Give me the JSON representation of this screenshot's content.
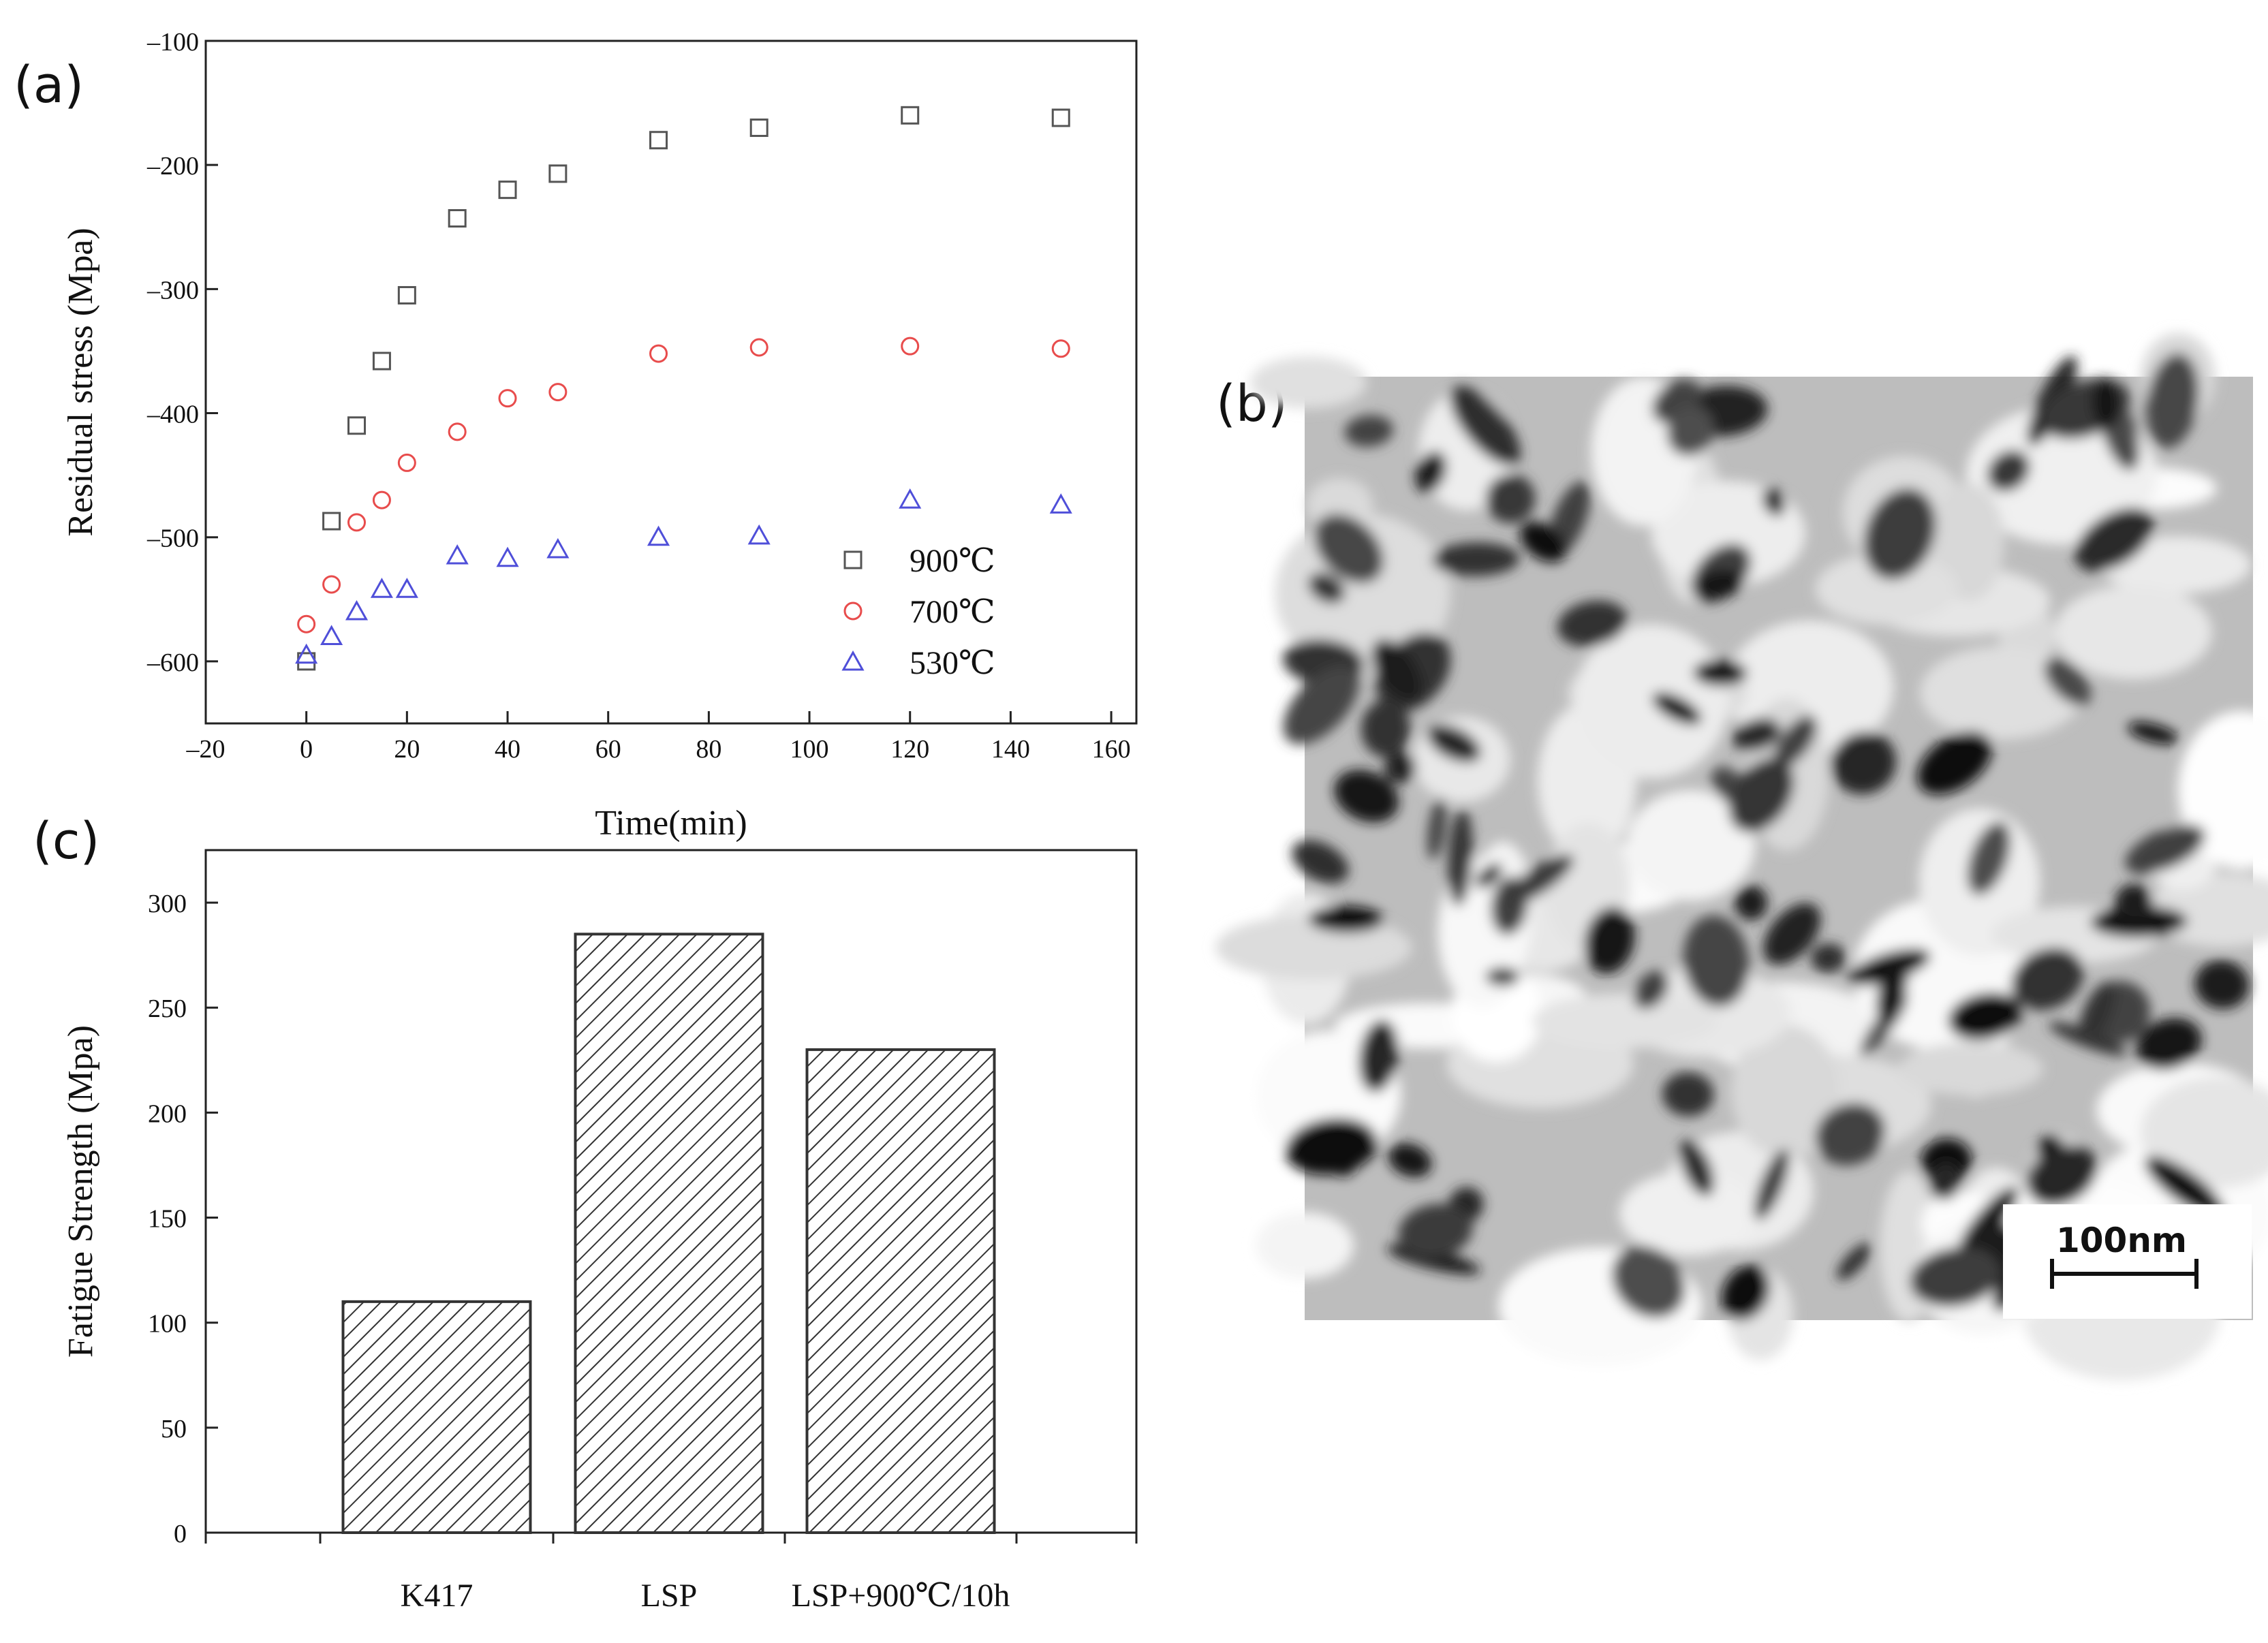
{
  "panels": {
    "a": {
      "label": "(a)",
      "chart_data": {
        "type": "scatter",
        "xlabel": "Time(min)",
        "ylabel": "Residual stress  (Mpa)",
        "xlim": [
          -20,
          165
        ],
        "ylim": [
          -650,
          -100
        ],
        "xticks": [
          -20,
          0,
          20,
          40,
          60,
          80,
          100,
          120,
          140,
          160
        ],
        "yticks": [
          -100,
          -200,
          -300,
          -400,
          -500,
          -600
        ],
        "legend_position": "bottom-right",
        "series": [
          {
            "name": "900℃",
            "marker": "square",
            "color": "#555555",
            "x": [
              0,
              5,
              10,
              15,
              20,
              30,
              40,
              50,
              70,
              90,
              120,
              150
            ],
            "y": [
              -600,
              -487,
              -410,
              -358,
              -305,
              -243,
              -220,
              -207,
              -180,
              -170,
              -160,
              -162
            ]
          },
          {
            "name": "700℃",
            "marker": "circle",
            "color": "#e84c4c",
            "x": [
              0,
              5,
              10,
              15,
              20,
              30,
              40,
              50,
              70,
              90,
              120,
              150
            ],
            "y": [
              -570,
              -538,
              -488,
              -470,
              -440,
              -415,
              -388,
              -383,
              -352,
              -347,
              -346,
              -348
            ]
          },
          {
            "name": "530℃",
            "marker": "triangle",
            "color": "#4f4fd9",
            "x": [
              0,
              5,
              10,
              15,
              20,
              30,
              40,
              50,
              70,
              90,
              120,
              150
            ],
            "y": [
              -595,
              -580,
              -560,
              -542,
              -542,
              -515,
              -517,
              -510,
              -500,
              -499,
              -470,
              -474
            ]
          }
        ]
      }
    },
    "b": {
      "label": "(b)",
      "scale_bar": "100nm"
    },
    "c": {
      "label": "(c)",
      "chart_data": {
        "type": "bar",
        "xlabel": "",
        "ylabel": "Fatigue Strength  (Mpa)",
        "categories": [
          "K417",
          "LSP",
          "LSP+900℃/10h"
        ],
        "values": [
          110,
          285,
          230
        ],
        "ylim": [
          0,
          325
        ],
        "yticks": [
          0,
          50,
          100,
          150,
          200,
          250,
          300
        ],
        "fill": "diagonal-hatch"
      }
    }
  }
}
